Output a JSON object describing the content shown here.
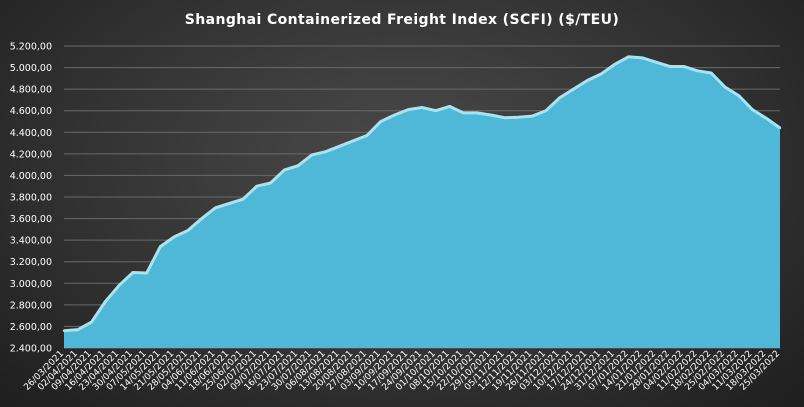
{
  "chart_data": {
    "type": "area",
    "title": "Shanghai Containerized Freight Index  (SCFI) ($/TEU)",
    "xlabel": "",
    "ylabel": "",
    "ylim": [
      2400,
      5200
    ],
    "y_ticks": [
      "2.400,00",
      "2.600,00",
      "2.800,00",
      "3.000,00",
      "3.200,00",
      "3.400,00",
      "3.600,00",
      "3.800,00",
      "4.000,00",
      "4.200,00",
      "4.400,00",
      "4.600,00",
      "4.800,00",
      "5.000,00",
      "5.200,00"
    ],
    "y_tick_values": [
      2400,
      2600,
      2800,
      3000,
      3200,
      3400,
      3600,
      3800,
      4000,
      4200,
      4400,
      4600,
      4800,
      5000,
      5200
    ],
    "grid": true,
    "legend": "none",
    "fill_color": "#4fb8d8",
    "line_color": "#9fe6f6",
    "x": [
      "26/03/2021",
      "02/04/2021",
      "09/04/2021",
      "16/04/2021",
      "23/04/2021",
      "30/04/2021",
      "07/05/2021",
      "14/05/2021",
      "21/05/2021",
      "28/05/2021",
      "04/06/2021",
      "11/06/2021",
      "18/06/2021",
      "25/06/2021",
      "02/07/2021",
      "09/07/2021",
      "16/07/2021",
      "23/07/2021",
      "30/07/2021",
      "06/08/2021",
      "13/08/2021",
      "20/08/2021",
      "27/08/2021",
      "03/09/2021",
      "10/09/2021",
      "17/09/2021",
      "24/09/2021",
      "01/10/2021",
      "08/10/2021",
      "15/10/2021",
      "22/10/2021",
      "29/10/2021",
      "05/11/2021",
      "12/11/2021",
      "19/11/2021",
      "26/11/2021",
      "03/12/2021",
      "10/12/2021",
      "17/12/2021",
      "24/12/2021",
      "31/12/2021",
      "07/01/2022",
      "14/01/2022",
      "21/01/2022",
      "28/01/2022",
      "04/02/2022",
      "11/02/2022",
      "18/02/2022",
      "25/02/2022",
      "04/03/2022",
      "11/03/2022",
      "18/03/2022",
      "25/03/2022"
    ],
    "values": [
      2560,
      2570,
      2640,
      2830,
      2980,
      3100,
      3095,
      3340,
      3430,
      3490,
      3600,
      3700,
      3740,
      3780,
      3900,
      3930,
      4050,
      4090,
      4190,
      4220,
      4270,
      4320,
      4370,
      4500,
      4560,
      4610,
      4630,
      4600,
      4640,
      4580,
      4580,
      4560,
      4535,
      4540,
      4550,
      4600,
      4720,
      4800,
      4880,
      4940,
      5030,
      5100,
      5090,
      5050,
      5010,
      5010,
      4970,
      4950,
      4820,
      4740,
      4610,
      4530,
      4440
    ]
  }
}
